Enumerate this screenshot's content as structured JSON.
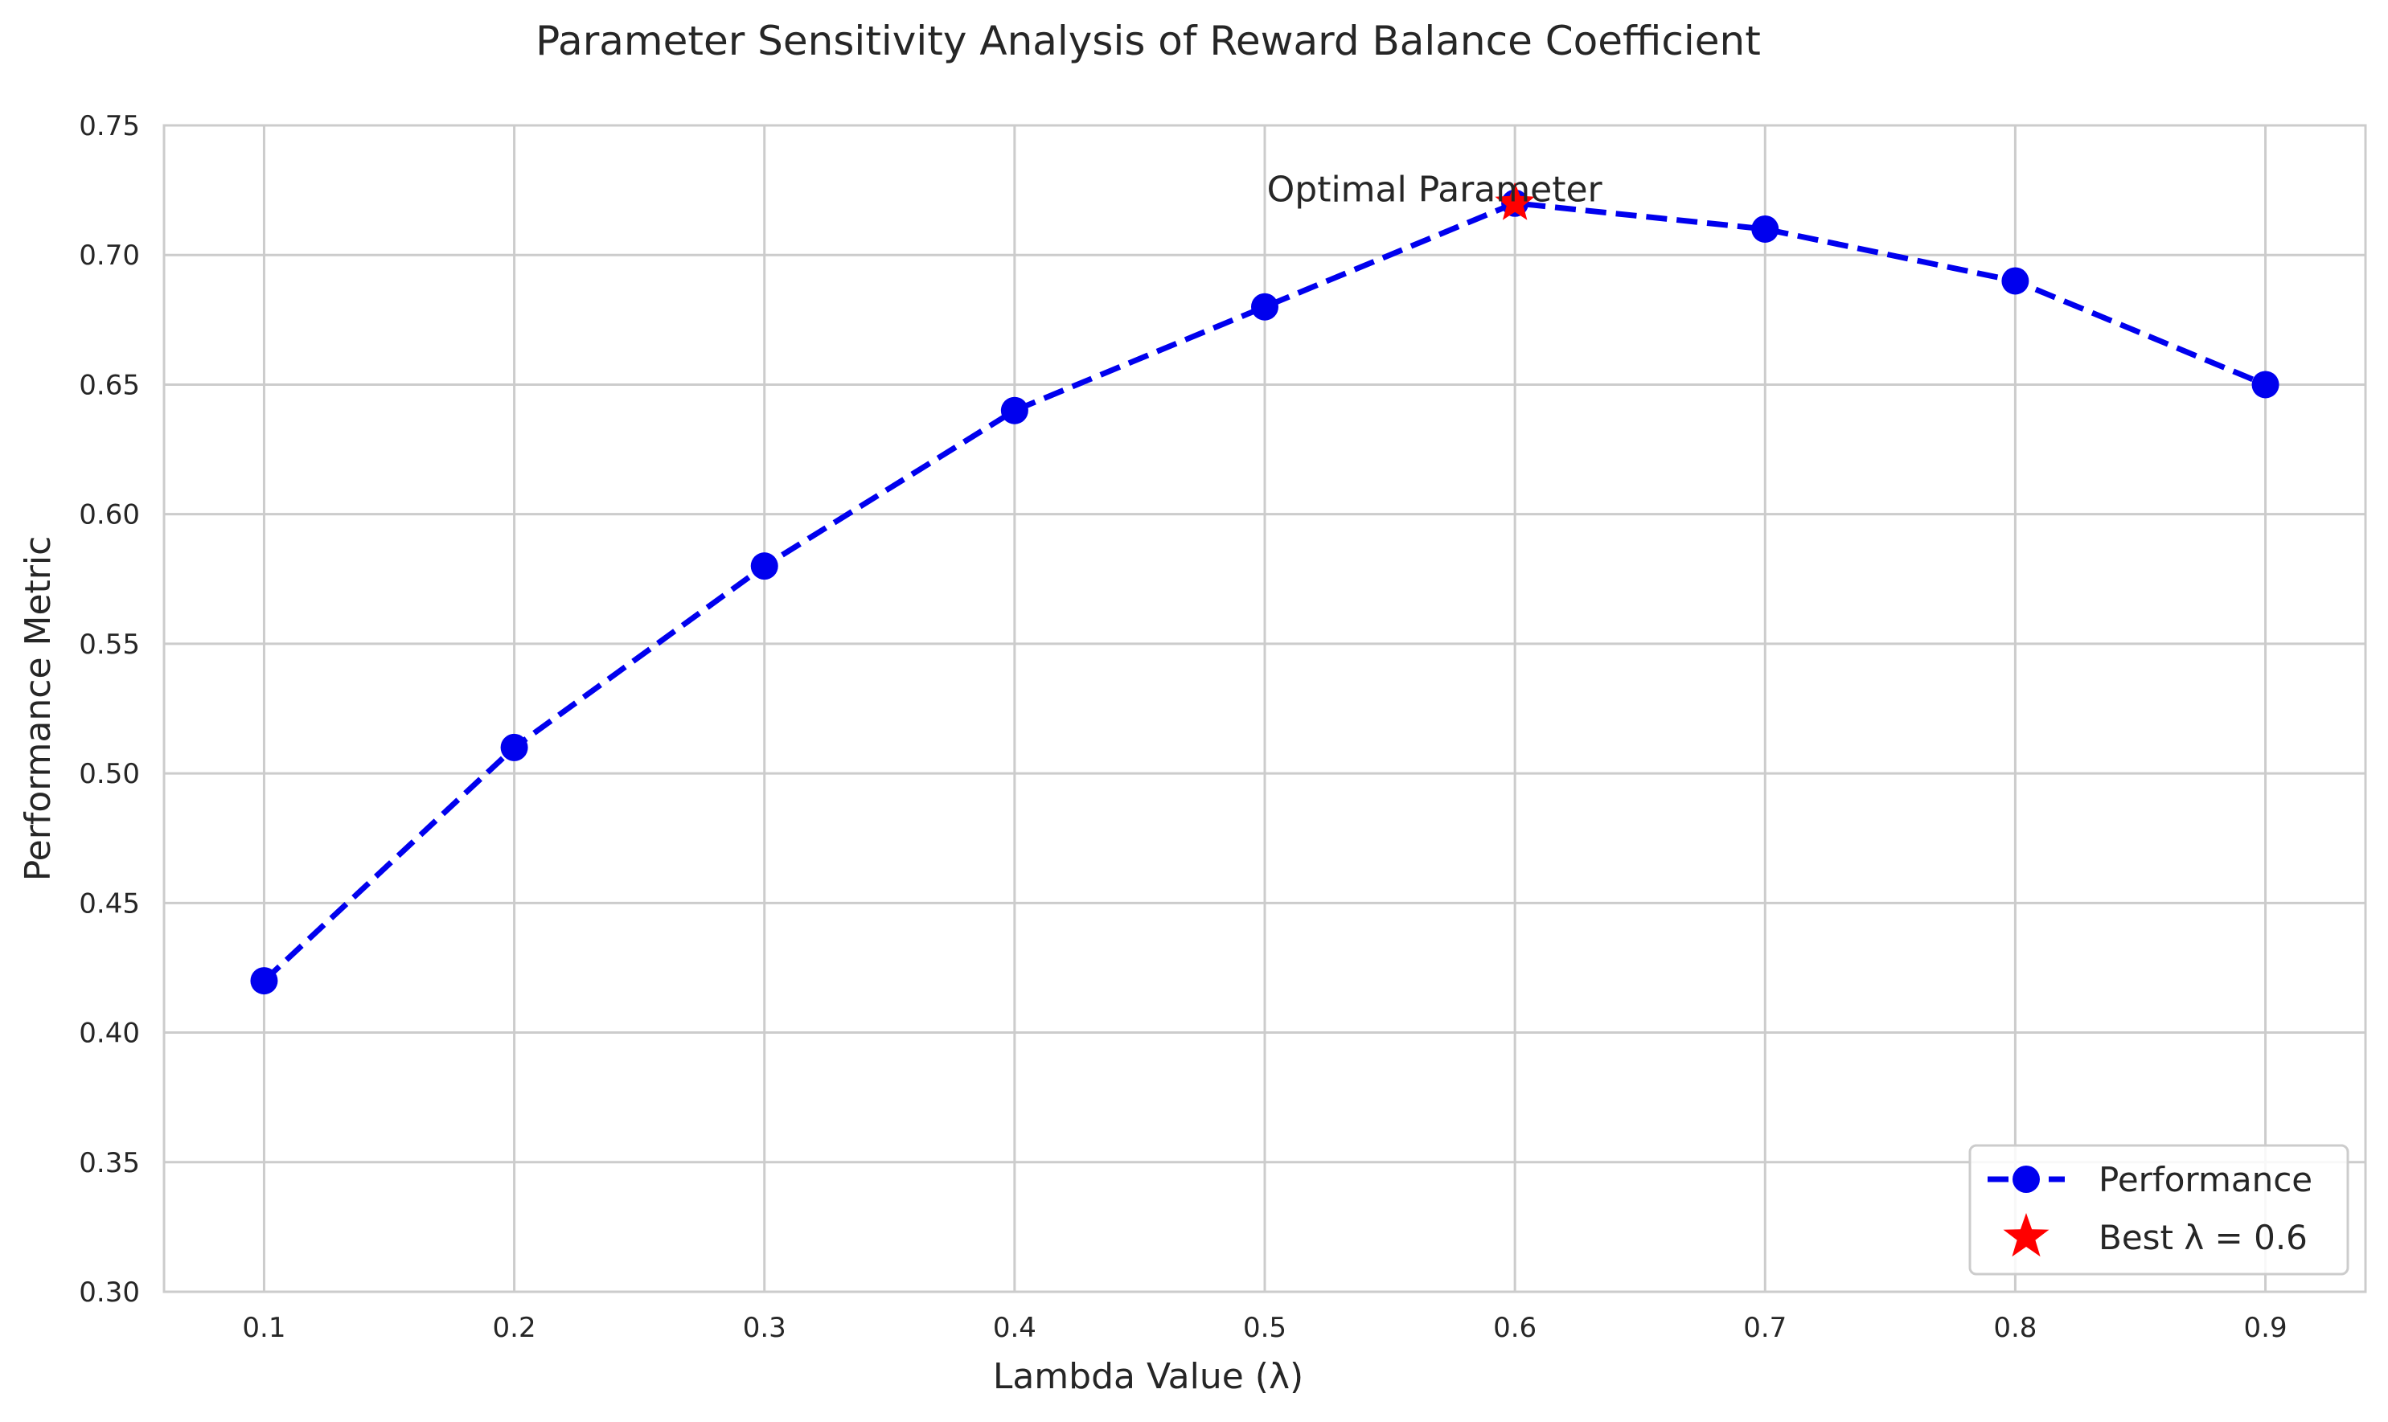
{
  "chart_data": {
    "type": "line",
    "title": "Parameter Sensitivity Analysis of Reward Balance Coefficient",
    "xlabel": "Lambda Value (λ)",
    "ylabel": "Performance Metric",
    "xlim": [
      0.06,
      0.94
    ],
    "ylim": [
      0.3,
      0.75
    ],
    "x_ticks": [
      "0.1",
      "0.2",
      "0.3",
      "0.4",
      "0.5",
      "0.6",
      "0.7",
      "0.8",
      "0.9"
    ],
    "y_ticks": [
      "0.30",
      "0.35",
      "0.40",
      "0.45",
      "0.50",
      "0.55",
      "0.60",
      "0.65",
      "0.70",
      "0.75"
    ],
    "grid": true,
    "series": [
      {
        "name": "Performance",
        "color": "#0000ee",
        "style": "dashed",
        "marker": "circle",
        "x": [
          0.1,
          0.2,
          0.3,
          0.4,
          0.5,
          0.6,
          0.7,
          0.8,
          0.9
        ],
        "y": [
          0.42,
          0.51,
          0.58,
          0.64,
          0.68,
          0.72,
          0.71,
          0.69,
          0.65
        ]
      }
    ],
    "highlight": {
      "name": "Best λ = 0.6",
      "x": 0.6,
      "y": 0.72,
      "color": "#ff0000",
      "marker": "star"
    },
    "annotation": {
      "text": "Optimal Parameter",
      "x": 0.6,
      "y": 0.72
    },
    "legend": {
      "position": "bottom-right",
      "entries": [
        "Performance",
        "Best λ = 0.6"
      ]
    }
  }
}
